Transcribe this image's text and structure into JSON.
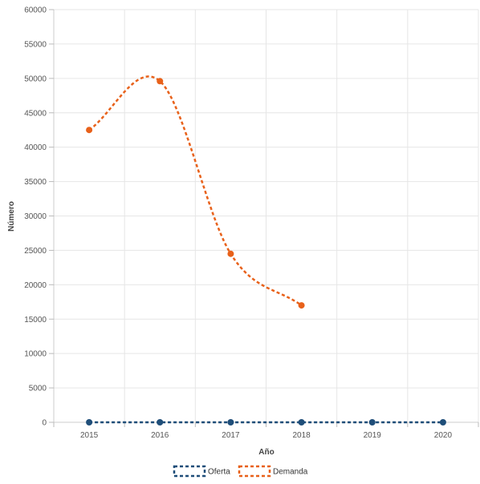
{
  "chart_data": {
    "type": "line",
    "categories": [
      "2015",
      "2016",
      "2017",
      "2018",
      "2019",
      "2020"
    ],
    "xlabel": "Año",
    "ylabel": "Número",
    "ylim": [
      0,
      60000
    ],
    "y_ticks": [
      0,
      5000,
      10000,
      15000,
      20000,
      25000,
      30000,
      35000,
      40000,
      45000,
      50000,
      55000,
      60000
    ],
    "grid": true,
    "legend_position": "bottom",
    "series": [
      {
        "name": "Oferta",
        "color": "#1f4e79",
        "values": [
          0,
          0,
          0,
          0,
          0,
          0
        ],
        "style": "dashed-straight"
      },
      {
        "name": "Demanda",
        "color": "#e8611a",
        "values": [
          42500,
          49600,
          24500,
          17000,
          null,
          null
        ],
        "style": "dashed-smooth"
      }
    ]
  }
}
